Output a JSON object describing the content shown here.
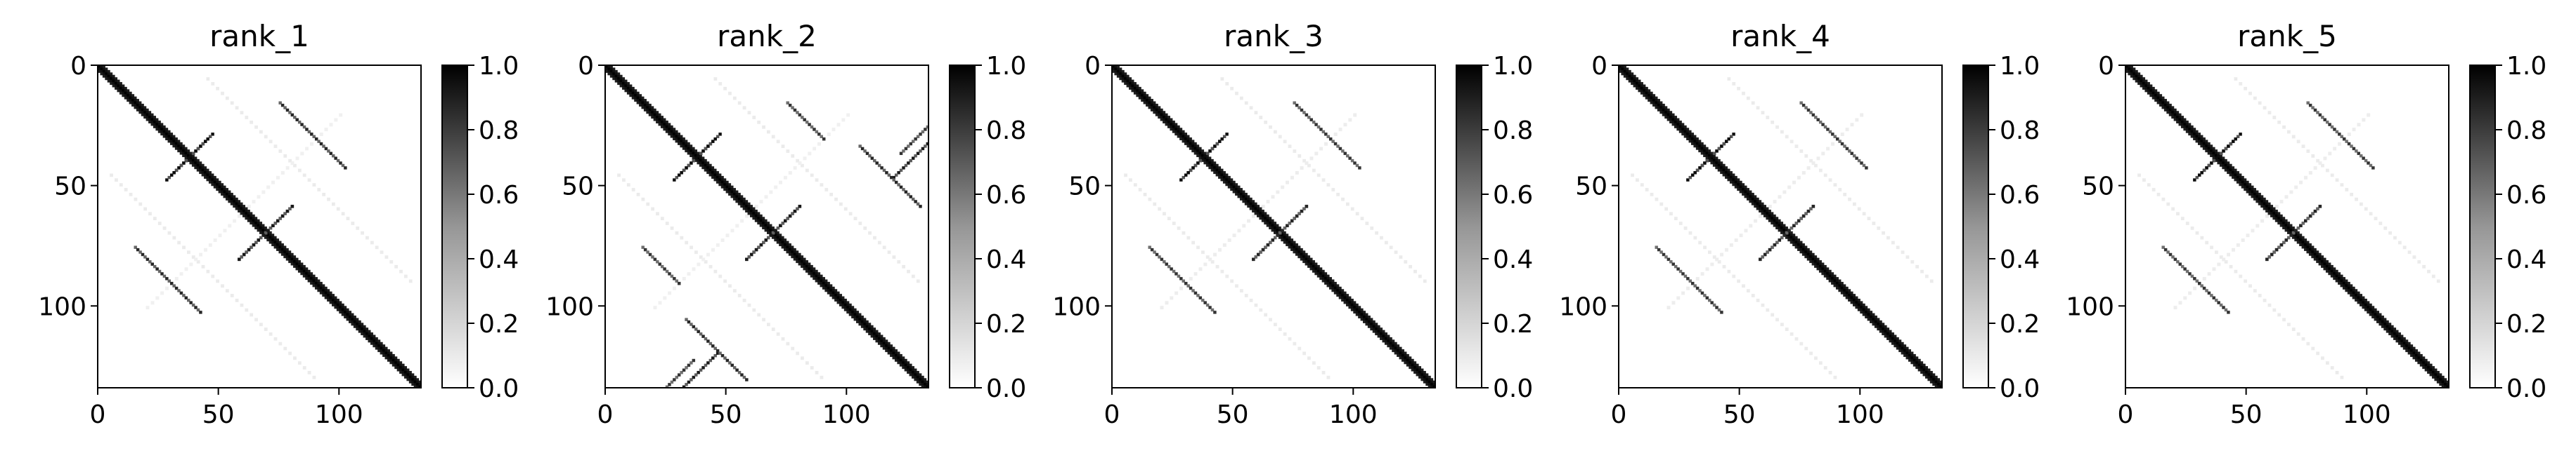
{
  "chart_data": {
    "type": "heatmap",
    "colormap": "Greys",
    "matrix_size": 134,
    "x_ticks": [
      0,
      50,
      100
    ],
    "y_ticks": [
      0,
      50,
      100
    ],
    "colorbar": {
      "range": [
        0.0,
        1.0
      ],
      "ticks": [
        "0.0",
        "0.2",
        "0.4",
        "0.6",
        "0.8",
        "1.0"
      ]
    },
    "panels": [
      {
        "title": "rank_1",
        "main_diagonal": {
          "start": 0,
          "end": 133,
          "value": 1.0
        },
        "contacts": [
          {
            "kind": "antidiagonal",
            "sum": 75,
            "from": 28,
            "to": 44,
            "value": 0.95
          },
          {
            "kind": "antidiagonal",
            "sum": 138,
            "from": 58,
            "to": 80,
            "value": 0.9
          },
          {
            "kind": "parallel",
            "offset": 60,
            "from": 15,
            "to": 42,
            "value": 0.85
          }
        ],
        "faint_patterns": [
          {
            "kind": "parallel",
            "offset": 40,
            "from": 5,
            "to": 90,
            "value": 0.08
          },
          {
            "kind": "antidiagonal",
            "sum": 120,
            "from": 20,
            "to": 100,
            "value": 0.06
          }
        ]
      },
      {
        "title": "rank_2",
        "main_diagonal": {
          "start": 0,
          "end": 133,
          "value": 1.0
        },
        "contacts": [
          {
            "kind": "antidiagonal",
            "sum": 75,
            "from": 28,
            "to": 44,
            "value": 0.95
          },
          {
            "kind": "antidiagonal",
            "sum": 138,
            "from": 58,
            "to": 80,
            "value": 0.9
          },
          {
            "kind": "parallel",
            "offset": 60,
            "from": 15,
            "to": 30,
            "value": 0.8
          },
          {
            "kind": "antidiagonal",
            "sum": 165,
            "from": 32,
            "to": 46,
            "value": 0.9
          },
          {
            "kind": "parallel",
            "offset": 72,
            "from": 33,
            "to": 58,
            "value": 0.85
          },
          {
            "kind": "antidiagonal",
            "sum": 158,
            "from": 24,
            "to": 36,
            "value": 0.8
          }
        ],
        "faint_patterns": [
          {
            "kind": "parallel",
            "offset": 40,
            "from": 5,
            "to": 90,
            "value": 0.08
          },
          {
            "kind": "antidiagonal",
            "sum": 120,
            "from": 20,
            "to": 100,
            "value": 0.06
          }
        ]
      },
      {
        "title": "rank_3",
        "main_diagonal": {
          "start": 0,
          "end": 133,
          "value": 1.0
        },
        "contacts": [
          {
            "kind": "antidiagonal",
            "sum": 75,
            "from": 28,
            "to": 44,
            "value": 0.95
          },
          {
            "kind": "antidiagonal",
            "sum": 138,
            "from": 58,
            "to": 80,
            "value": 0.85
          },
          {
            "kind": "parallel",
            "offset": 60,
            "from": 15,
            "to": 42,
            "value": 0.8
          }
        ],
        "faint_patterns": [
          {
            "kind": "parallel",
            "offset": 40,
            "from": 5,
            "to": 90,
            "value": 0.08
          },
          {
            "kind": "antidiagonal",
            "sum": 120,
            "from": 20,
            "to": 100,
            "value": 0.07
          }
        ]
      },
      {
        "title": "rank_4",
        "main_diagonal": {
          "start": 0,
          "end": 133,
          "value": 1.0
        },
        "contacts": [
          {
            "kind": "antidiagonal",
            "sum": 75,
            "from": 28,
            "to": 44,
            "value": 0.95
          },
          {
            "kind": "antidiagonal",
            "sum": 138,
            "from": 58,
            "to": 80,
            "value": 0.85
          },
          {
            "kind": "parallel",
            "offset": 60,
            "from": 15,
            "to": 42,
            "value": 0.8
          }
        ],
        "faint_patterns": [
          {
            "kind": "parallel",
            "offset": 40,
            "from": 5,
            "to": 90,
            "value": 0.08
          },
          {
            "kind": "antidiagonal",
            "sum": 120,
            "from": 20,
            "to": 100,
            "value": 0.07
          }
        ]
      },
      {
        "title": "rank_5",
        "main_diagonal": {
          "start": 0,
          "end": 133,
          "value": 1.0
        },
        "contacts": [
          {
            "kind": "antidiagonal",
            "sum": 75,
            "from": 28,
            "to": 44,
            "value": 0.95
          },
          {
            "kind": "antidiagonal",
            "sum": 138,
            "from": 58,
            "to": 80,
            "value": 0.85
          },
          {
            "kind": "parallel",
            "offset": 60,
            "from": 15,
            "to": 42,
            "value": 0.8
          }
        ],
        "faint_patterns": [
          {
            "kind": "parallel",
            "offset": 40,
            "from": 5,
            "to": 90,
            "value": 0.08
          },
          {
            "kind": "antidiagonal",
            "sum": 120,
            "from": 20,
            "to": 100,
            "value": 0.07
          }
        ]
      }
    ]
  }
}
